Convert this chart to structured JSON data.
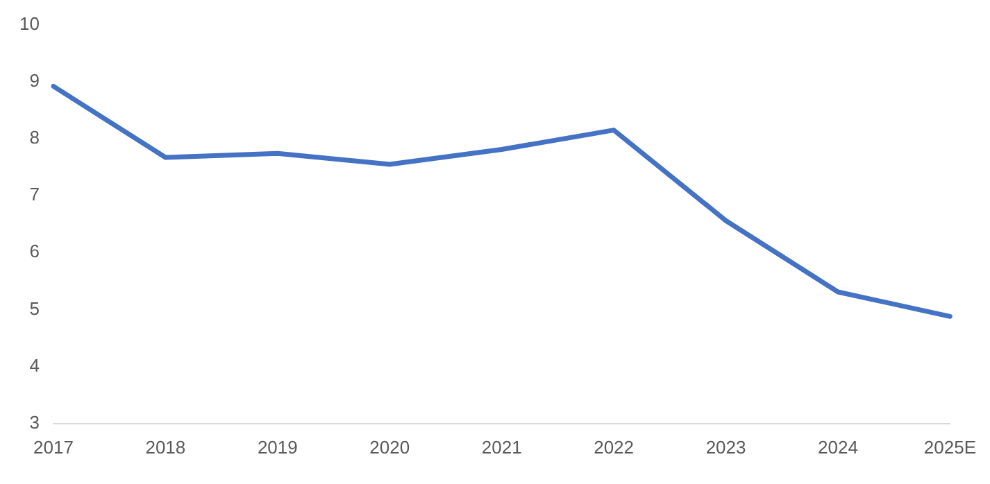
{
  "chart_data": {
    "type": "line",
    "categories": [
      "2017",
      "2018",
      "2019",
      "2020",
      "2021",
      "2022",
      "2023",
      "2024",
      "2025E"
    ],
    "series": [
      {
        "color": "#4472c4",
        "values": [
          8.92,
          7.67,
          7.74,
          7.55,
          7.81,
          8.15,
          6.56,
          5.31,
          4.88
        ]
      }
    ],
    "ylim": [
      3,
      10
    ],
    "yticks": [
      3,
      4,
      5,
      6,
      7,
      8,
      9,
      10
    ],
    "grid": false,
    "legend": false,
    "marker": "none",
    "line_style": "solid"
  }
}
